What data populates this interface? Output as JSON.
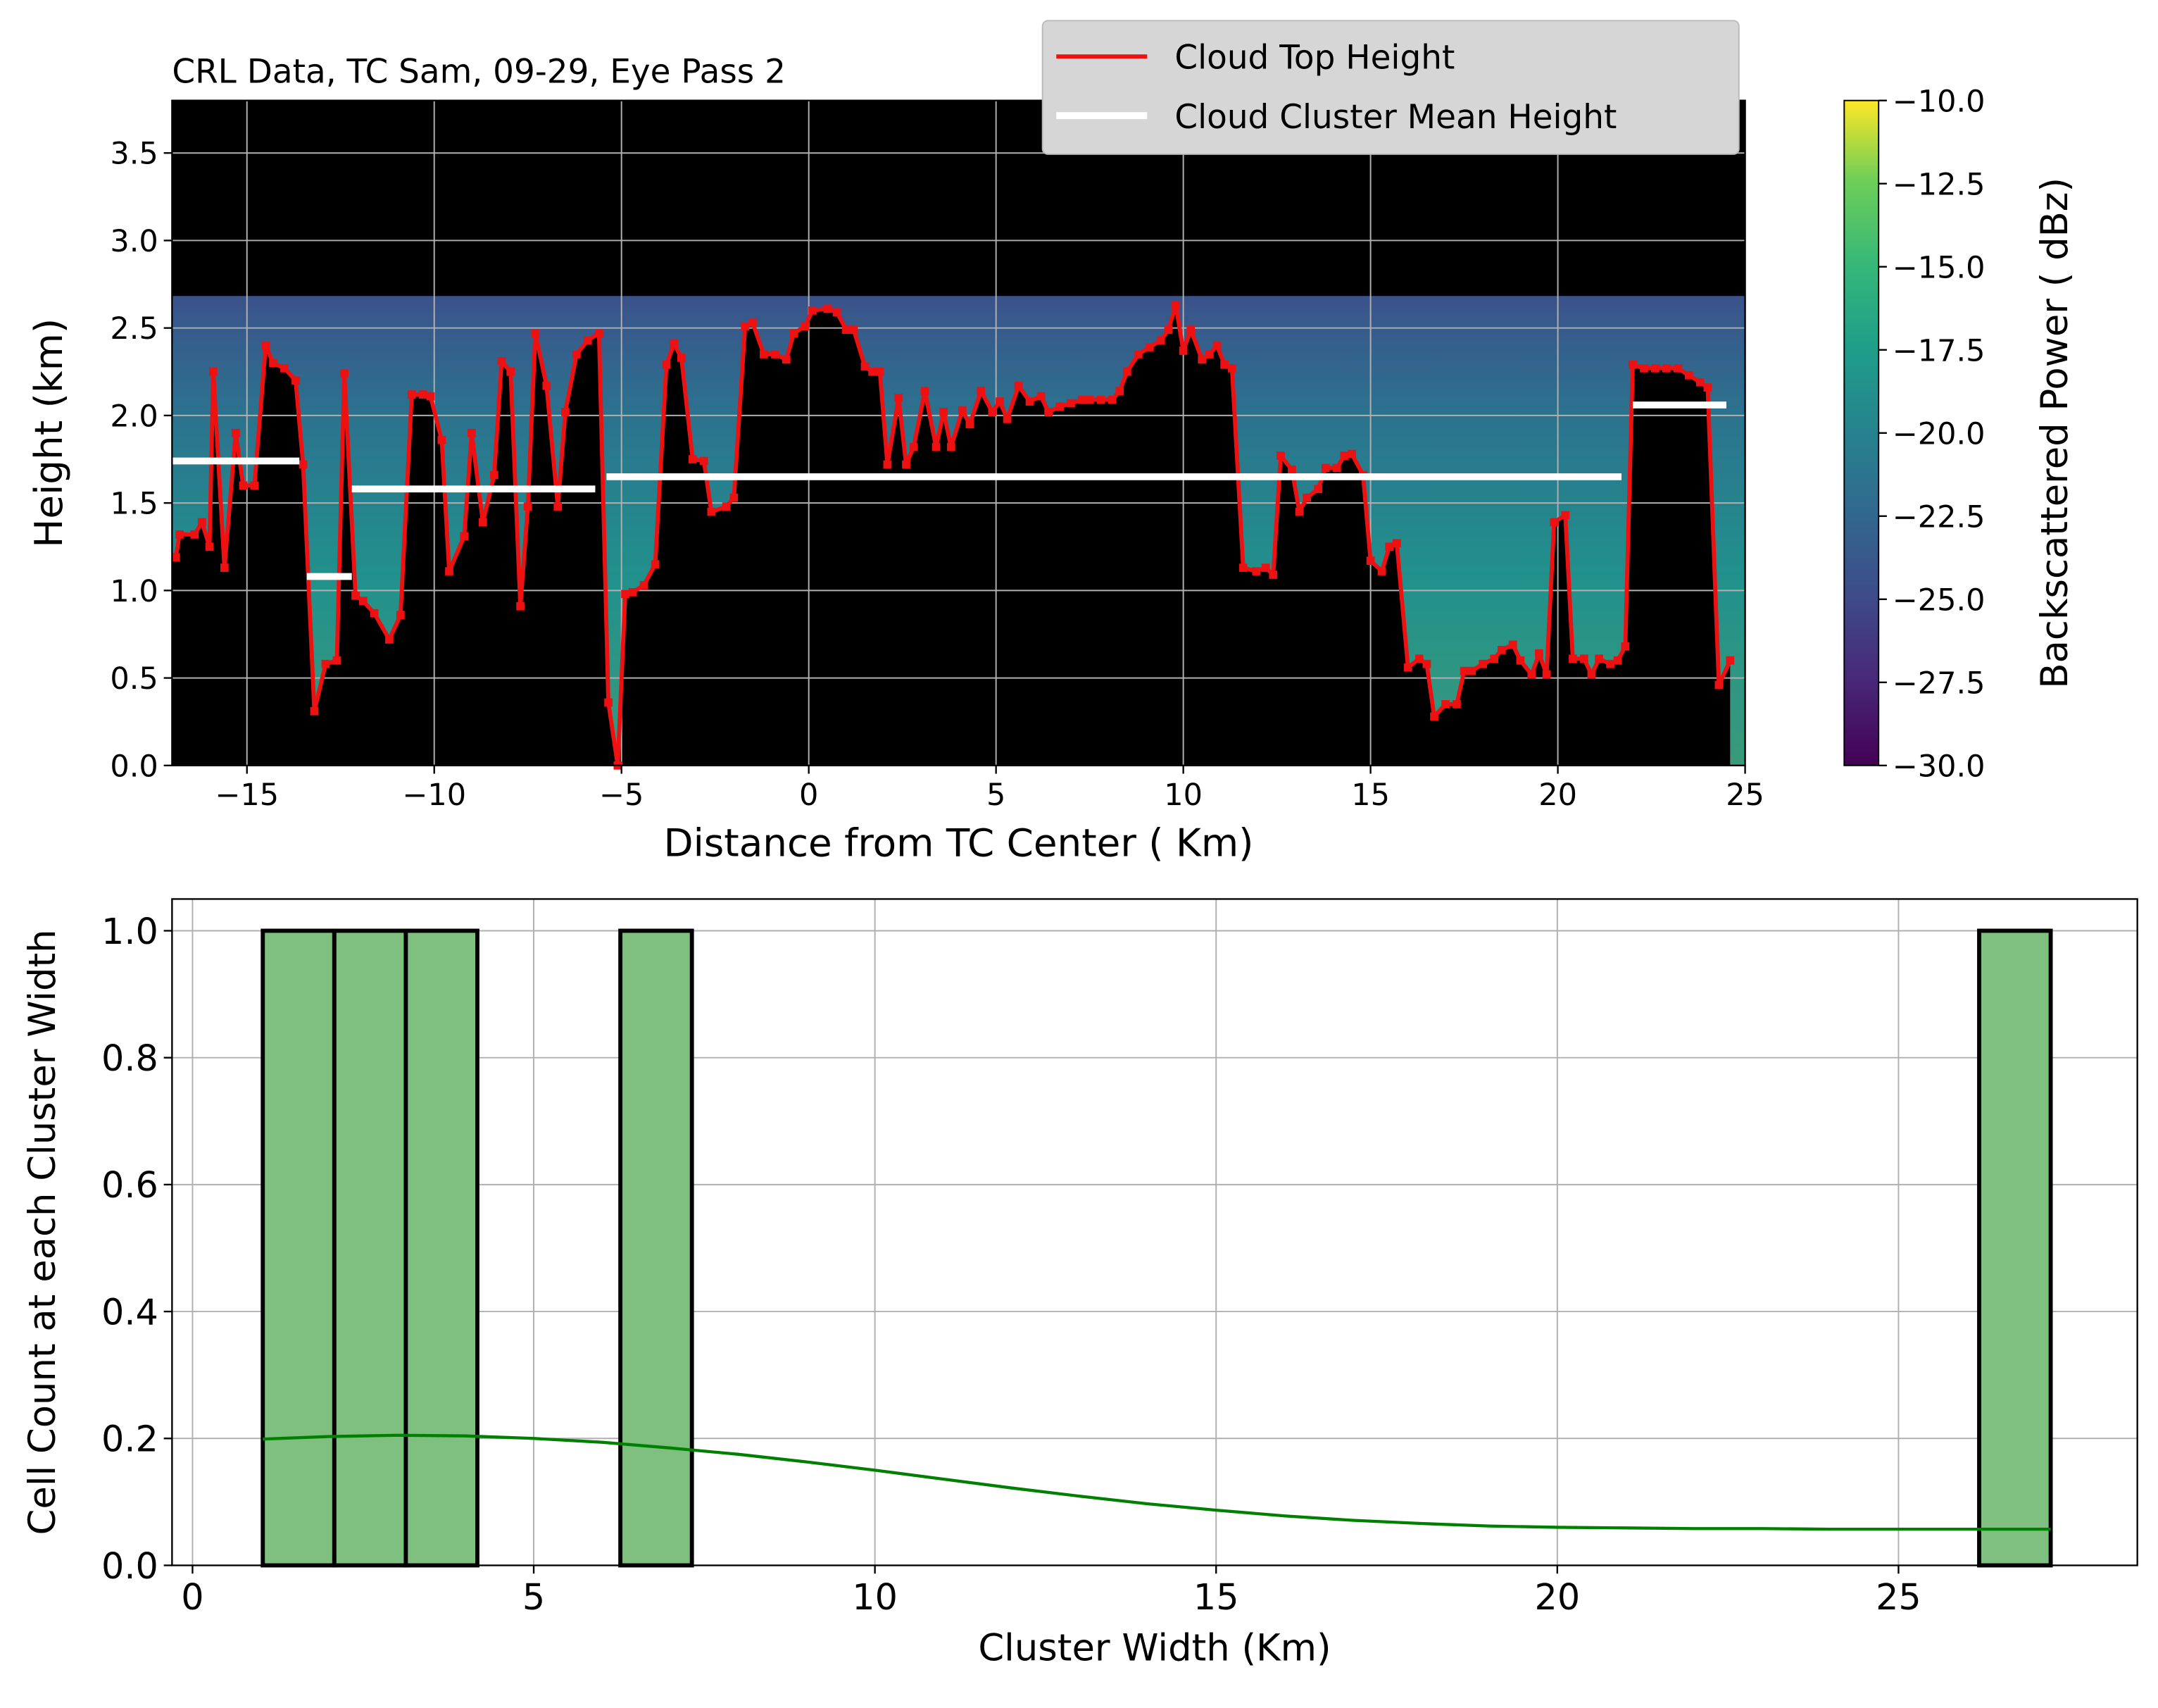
{
  "chart_data": [
    {
      "type": "line",
      "title": "CRL Data, TC Sam, 09-29, Eye Pass 2",
      "xlabel": "Distance from TC Center ( Km)",
      "ylabel": "Height (km)",
      "xlim": [
        -17,
        25
      ],
      "ylim": [
        0,
        3.8
      ],
      "xticks": [
        {
          "value": -15,
          "label": "−15"
        },
        {
          "value": -10,
          "label": "−10"
        },
        {
          "value": -5,
          "label": "−5"
        },
        0,
        5,
        10,
        15,
        20,
        25
      ],
      "yticks": [
        {
          "value": 0,
          "label": "0.0"
        },
        {
          "value": 0.5,
          "label": "0.5"
        },
        {
          "value": 1,
          "label": "1.0"
        },
        {
          "value": 1.5,
          "label": "1.5"
        },
        {
          "value": 2,
          "label": "2.0"
        },
        {
          "value": 2.5,
          "label": "2.5"
        },
        {
          "value": 3,
          "label": "3.0"
        },
        {
          "value": 3.5,
          "label": "3.5"
        }
      ],
      "grid": true,
      "legend": "upper center",
      "series": [
        {
          "name": "Cloud Top Height",
          "color": "#ee1111",
          "x": [
            -16.9,
            -16.8,
            -16.4,
            -16.2,
            -16.0,
            -15.9,
            -15.6,
            -15.3,
            -15.1,
            -14.8,
            -14.5,
            -14.3,
            -14.0,
            -13.7,
            -13.5,
            -13.2,
            -12.9,
            -12.6,
            -12.4,
            -12.1,
            -11.9,
            -11.6,
            -11.2,
            -10.9,
            -10.6,
            -10.3,
            -10.1,
            -9.8,
            -9.6,
            -9.2,
            -9.0,
            -8.7,
            -8.4,
            -8.2,
            -7.96,
            -7.7,
            -7.5,
            -7.3,
            -7.0,
            -6.7,
            -6.5,
            -6.2,
            -5.9,
            -5.6,
            -5.35,
            -5.1,
            -4.9,
            -4.7,
            -4.4,
            -4.1,
            -3.8,
            -3.6,
            -3.4,
            -3.1,
            -2.8,
            -2.6,
            -2.2,
            -2.0,
            -1.7,
            -1.5,
            -1.2,
            -0.9,
            -0.6,
            -0.4,
            -0.1,
            0.1,
            0.5,
            0.75,
            1.0,
            1.2,
            1.5,
            1.7,
            1.9,
            2.1,
            2.4,
            2.6,
            2.8,
            3.1,
            3.4,
            3.6,
            3.8,
            4.1,
            4.3,
            4.6,
            4.9,
            5.1,
            5.3,
            5.6,
            5.9,
            6.2,
            6.4,
            6.7,
            7.0,
            7.3,
            7.5,
            7.8,
            8.1,
            8.3,
            8.5,
            8.8,
            9.1,
            9.4,
            9.6,
            9.8,
            10.0,
            10.2,
            10.5,
            10.7,
            10.9,
            11.1,
            11.3,
            11.6,
            11.95,
            12.2,
            12.4,
            12.6,
            12.9,
            13.1,
            13.3,
            13.6,
            13.8,
            14.1,
            14.3,
            14.5,
            14.8,
            15.0,
            15.3,
            15.5,
            15.7,
            16.0,
            16.3,
            16.5,
            16.7,
            17.0,
            17.3,
            17.5,
            17.7,
            18.0,
            18.3,
            18.5,
            18.8,
            19.0,
            19.3,
            19.5,
            19.7,
            19.9,
            20.2,
            20.4,
            20.7,
            20.9,
            21.1,
            21.4,
            21.6,
            21.8,
            22.0,
            22.3,
            22.6,
            22.9,
            23.2,
            23.5,
            23.8,
            24.0,
            24.3,
            24.6
          ],
          "values": [
            1.19,
            1.32,
            1.32,
            1.39,
            1.25,
            2.25,
            1.13,
            1.9,
            1.6,
            1.6,
            2.4,
            2.3,
            2.27,
            2.2,
            1.72,
            0.31,
            0.58,
            0.6,
            2.24,
            0.97,
            0.94,
            0.87,
            0.72,
            0.86,
            2.12,
            2.12,
            2.11,
            1.86,
            1.11,
            1.31,
            1.9,
            1.39,
            1.66,
            2.31,
            2.25,
            0.91,
            1.48,
            2.47,
            2.17,
            1.48,
            2.02,
            2.35,
            2.43,
            2.47,
            0.36,
            0.0,
            0.98,
            0.99,
            1.03,
            1.15,
            2.29,
            2.41,
            2.33,
            1.75,
            1.74,
            1.45,
            1.48,
            1.53,
            2.51,
            2.53,
            2.35,
            2.35,
            2.32,
            2.47,
            2.51,
            2.6,
            2.61,
            2.59,
            2.49,
            2.49,
            2.28,
            2.25,
            2.25,
            1.72,
            2.1,
            1.72,
            1.82,
            2.14,
            1.82,
            2.02,
            1.82,
            2.03,
            1.95,
            2.14,
            2.02,
            2.08,
            1.98,
            2.17,
            2.08,
            2.11,
            2.02,
            2.05,
            2.07,
            2.09,
            2.09,
            2.09,
            2.09,
            2.14,
            2.25,
            2.35,
            2.39,
            2.43,
            2.49,
            2.63,
            2.37,
            2.49,
            2.32,
            2.35,
            2.4,
            2.29,
            2.27,
            1.13,
            1.11,
            1.13,
            1.09,
            1.77,
            1.69,
            1.45,
            1.53,
            1.58,
            1.7,
            1.7,
            1.77,
            1.78,
            1.66,
            1.17,
            1.11,
            1.25,
            1.27,
            0.56,
            0.61,
            0.58,
            0.28,
            0.35,
            0.35,
            0.54,
            0.54,
            0.58,
            0.61,
            0.66,
            0.69,
            0.6,
            0.52,
            0.64,
            0.52,
            1.39,
            1.43,
            0.61,
            0.61,
            0.52,
            0.61,
            0.58,
            0.6,
            0.68,
            2.29,
            2.27,
            2.27,
            2.27,
            2.27,
            2.23,
            2.19,
            2.16,
            0.46,
            0.6
          ]
        },
        {
          "name": "Cloud Cluster Mean Height",
          "color": "#ffffff",
          "segments": [
            {
              "xrange": [
                -17,
                -13.6
              ],
              "value": 1.74
            },
            {
              "xrange": [
                -13.4,
                -12.2
              ],
              "value": 1.08
            },
            {
              "xrange": [
                -12.2,
                -5.7
              ],
              "value": 1.58
            },
            {
              "xrange": [
                -5.4,
                21.7
              ],
              "value": 1.65
            },
            {
              "xrange": [
                22.0,
                24.5
              ],
              "value": 2.06
            }
          ]
        }
      ],
      "colorbar": {
        "label": "Backscattered Power ( dBz)",
        "colormap": "viridis",
        "clim": [
          -30,
          -10
        ],
        "ticks": [
          {
            "value": -10,
            "label": "−10.0"
          },
          {
            "value": -12.5,
            "label": "−12.5"
          },
          {
            "value": -15,
            "label": "−15.0"
          },
          {
            "value": -17.5,
            "label": "−17.5"
          },
          {
            "value": -20,
            "label": "−20.0"
          },
          {
            "value": -22.5,
            "label": "−22.5"
          },
          {
            "value": -25,
            "label": "−25.0"
          },
          {
            "value": -27.5,
            "label": "−27.5"
          },
          {
            "value": -30,
            "label": "−30.0"
          }
        ]
      }
    },
    {
      "type": "histogram",
      "xlabel": "Cluster Width (Km)",
      "ylabel": "Cell Count at each Cluster Width",
      "xlim": [
        -0.3,
        28.5
      ],
      "ylim": [
        0,
        1.05
      ],
      "xticks": [
        0,
        5,
        10,
        15,
        20,
        25
      ],
      "yticks": [
        {
          "value": 0,
          "label": "0.0"
        },
        {
          "value": 0.2,
          "label": "0.2"
        },
        {
          "value": 0.4,
          "label": "0.4"
        },
        {
          "value": 0.6,
          "label": "0.6"
        },
        {
          "value": 0.8,
          "label": "0.8"
        },
        {
          "value": 1,
          "label": "1.0"
        }
      ],
      "grid": true,
      "color": "#7fbf7f",
      "edgecolor": "#000000",
      "bins": [
        1.03,
        2.078,
        3.126,
        4.174,
        5.222,
        6.27,
        7.318,
        8.366,
        9.414,
        10.462,
        11.51,
        12.558,
        13.606,
        14.654,
        15.702,
        16.75,
        17.798,
        18.846,
        19.894,
        20.942,
        21.99,
        23.038,
        24.086,
        25.134,
        26.182,
        27.23
      ],
      "values": [
        1,
        1,
        1,
        0,
        0,
        1,
        0,
        0,
        0,
        0,
        0,
        0,
        0,
        0,
        0,
        0,
        0,
        0,
        0,
        0,
        0,
        0,
        0,
        0,
        1
      ],
      "kde": {
        "color": "#008000",
        "x": [
          1.03,
          2,
          3,
          4,
          5,
          6,
          7,
          8,
          9,
          10,
          11,
          12,
          13,
          14,
          15,
          16,
          17,
          18,
          19,
          20,
          21,
          22,
          23,
          24,
          25,
          26,
          27.23
        ],
        "values": [
          0.199,
          0.203,
          0.205,
          0.204,
          0.2,
          0.194,
          0.185,
          0.175,
          0.163,
          0.15,
          0.136,
          0.122,
          0.109,
          0.097,
          0.087,
          0.078,
          0.071,
          0.066,
          0.062,
          0.06,
          0.059,
          0.058,
          0.058,
          0.057,
          0.057,
          0.057,
          0.057
        ]
      }
    }
  ]
}
